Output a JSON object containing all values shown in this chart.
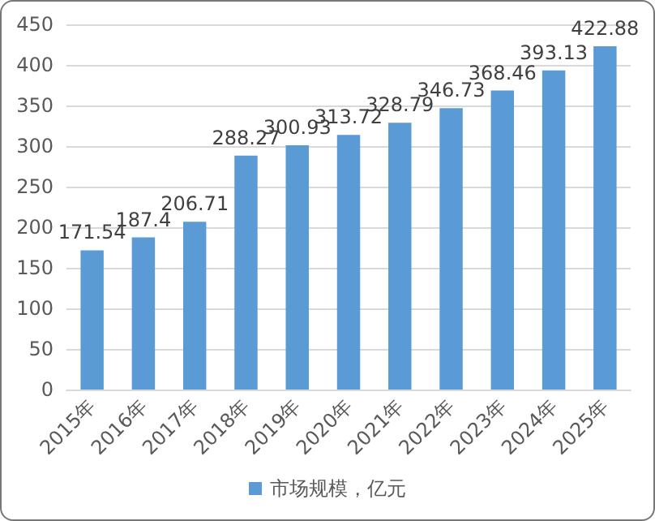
{
  "chart_data": {
    "type": "bar",
    "categories": [
      "2015年",
      "2016年",
      "2017年",
      "2018年",
      "2019年",
      "2020年",
      "2021年",
      "2022年",
      "2023年",
      "2024年",
      "2025年"
    ],
    "series": [
      {
        "name": "市场规模，亿元",
        "color": "#5b9bd5",
        "values": [
          171.54,
          187.4,
          206.71,
          288.27,
          300.93,
          313.72,
          328.79,
          346.73,
          368.46,
          393.13,
          422.88
        ]
      }
    ],
    "ylim": [
      0,
      450
    ],
    "yticks": [
      0,
      50,
      100,
      150,
      200,
      250,
      300,
      350,
      400,
      450
    ],
    "grid": "y",
    "legend": "bottom",
    "data_labels": true
  }
}
